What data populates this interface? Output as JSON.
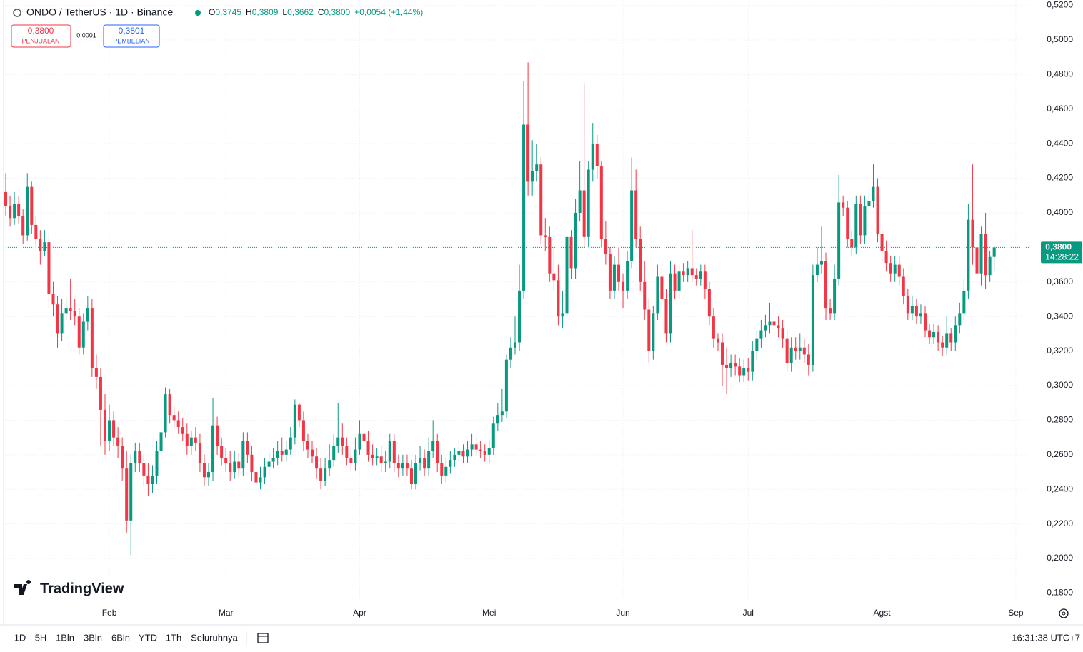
{
  "chart_data": {
    "type": "candlestick",
    "title": "ONDO / TetherUS · 1D · Binance",
    "ohlc": [
      [
        "O",
        "0,3745"
      ],
      [
        "H",
        "0,3809"
      ],
      [
        "L",
        "0,3662"
      ],
      [
        "C",
        "0,3800"
      ]
    ],
    "change": "+0,0054 (+1,44%)",
    "sell": {
      "price": "0,3800",
      "label": "PENJUALAN"
    },
    "spread": "0,0001",
    "buy": {
      "price": "0,3801",
      "label": "PEMBELIAN"
    },
    "last_price_label": "0,3800",
    "countdown": "14:28:22",
    "watermark": "TradingView",
    "up_color": "#089981",
    "down_color": "#f23645",
    "grid": true,
    "open": [
      0.412,
      0.404,
      0.397,
      0.405,
      0.398,
      0.387,
      0.415,
      0.393,
      0.385,
      0.378,
      0.383,
      0.353,
      0.347,
      0.33,
      0.342,
      0.345,
      0.343,
      0.34,
      0.322,
      0.337,
      0.345,
      0.31,
      0.305,
      0.286,
      0.268,
      0.28,
      0.27,
      0.265,
      0.252,
      0.222,
      0.255,
      0.262,
      0.255,
      0.248,
      0.243,
      0.248,
      0.262,
      0.273,
      0.295,
      0.283,
      0.28,
      0.276,
      0.272,
      0.265,
      0.27,
      0.267,
      0.255,
      0.247,
      0.25,
      0.277,
      0.265,
      0.258,
      0.255,
      0.25,
      0.256,
      0.252,
      0.268,
      0.26,
      0.25,
      0.244,
      0.247,
      0.253,
      0.256,
      0.258,
      0.262,
      0.26,
      0.263,
      0.27,
      0.289,
      0.28,
      0.268,
      0.263,
      0.259,
      0.252,
      0.245,
      0.252,
      0.257,
      0.265,
      0.27,
      0.265,
      0.258,
      0.255,
      0.263,
      0.272,
      0.268,
      0.26,
      0.258,
      0.259,
      0.255,
      0.256,
      0.268,
      0.255,
      0.252,
      0.255,
      0.252,
      0.243,
      0.255,
      0.258,
      0.252,
      0.262,
      0.268,
      0.255,
      0.248,
      0.253,
      0.257,
      0.26,
      0.262,
      0.259,
      0.263,
      0.266,
      0.263,
      0.262,
      0.26,
      0.264,
      0.278,
      0.283,
      0.285,
      0.315,
      0.322,
      0.325,
      0.355,
      0.451,
      0.418,
      0.424,
      0.428,
      0.387,
      0.386,
      0.365,
      0.361,
      0.34,
      0.342,
      0.386,
      0.368,
      0.4,
      0.413,
      0.386,
      0.425,
      0.44,
      0.427,
      0.385,
      0.376,
      0.355,
      0.37,
      0.36,
      0.355,
      0.372,
      0.413,
      0.385,
      0.36,
      0.344,
      0.32,
      0.342,
      0.363,
      0.35,
      0.33,
      0.365,
      0.355,
      0.366,
      0.364,
      0.368,
      0.364,
      0.362,
      0.366,
      0.356,
      0.34,
      0.327,
      0.325,
      0.312,
      0.31,
      0.313,
      0.311,
      0.306,
      0.31,
      0.308,
      0.32,
      0.327,
      0.332,
      0.335,
      0.337,
      0.335,
      0.333,
      0.327,
      0.313,
      0.322,
      0.32,
      0.322,
      0.318,
      0.312,
      0.364,
      0.37,
      0.372,
      0.345,
      0.342,
      0.362,
      0.406,
      0.403,
      0.385,
      0.38,
      0.405,
      0.387,
      0.404,
      0.407,
      0.415,
      0.388,
      0.378,
      0.371,
      0.365,
      0.37,
      0.363,
      0.352,
      0.342,
      0.346,
      0.34,
      0.342,
      0.332,
      0.328,
      0.331,
      0.325,
      0.322,
      0.33,
      0.325,
      0.335,
      0.342,
      0.355,
      0.396,
      0.38,
      0.365,
      0.388,
      0.364,
      0.3745
    ],
    "high": [
      0.423,
      0.41,
      0.412,
      0.41,
      0.402,
      0.423,
      0.418,
      0.398,
      0.39,
      0.39,
      0.388,
      0.36,
      0.352,
      0.35,
      0.351,
      0.362,
      0.35,
      0.345,
      0.342,
      0.352,
      0.35,
      0.318,
      0.31,
      0.295,
      0.289,
      0.285,
      0.276,
      0.27,
      0.262,
      0.26,
      0.267,
      0.267,
      0.26,
      0.255,
      0.254,
      0.268,
      0.298,
      0.299,
      0.298,
      0.288,
      0.285,
      0.281,
      0.278,
      0.274,
      0.276,
      0.272,
      0.26,
      0.255,
      0.293,
      0.282,
      0.27,
      0.264,
      0.262,
      0.262,
      0.261,
      0.273,
      0.273,
      0.265,
      0.256,
      0.253,
      0.258,
      0.262,
      0.264,
      0.268,
      0.27,
      0.268,
      0.276,
      0.292,
      0.29,
      0.285,
      0.272,
      0.268,
      0.264,
      0.258,
      0.258,
      0.266,
      0.272,
      0.29,
      0.278,
      0.27,
      0.264,
      0.27,
      0.28,
      0.278,
      0.274,
      0.266,
      0.264,
      0.265,
      0.262,
      0.272,
      0.272,
      0.26,
      0.26,
      0.26,
      0.257,
      0.26,
      0.265,
      0.263,
      0.27,
      0.28,
      0.272,
      0.26,
      0.258,
      0.262,
      0.264,
      0.268,
      0.266,
      0.268,
      0.272,
      0.27,
      0.268,
      0.266,
      0.268,
      0.282,
      0.29,
      0.298,
      0.318,
      0.328,
      0.34,
      0.37,
      0.476,
      0.487,
      0.442,
      0.44,
      0.432,
      0.397,
      0.392,
      0.38,
      0.37,
      0.355,
      0.39,
      0.39,
      0.408,
      0.43,
      0.475,
      0.43,
      0.452,
      0.445,
      0.43,
      0.395,
      0.38,
      0.375,
      0.38,
      0.365,
      0.378,
      0.432,
      0.425,
      0.392,
      0.372,
      0.35,
      0.346,
      0.37,
      0.368,
      0.356,
      0.372,
      0.37,
      0.37,
      0.371,
      0.372,
      0.39,
      0.368,
      0.37,
      0.37,
      0.36,
      0.345,
      0.33,
      0.33,
      0.322,
      0.318,
      0.318,
      0.316,
      0.315,
      0.316,
      0.326,
      0.332,
      0.338,
      0.341,
      0.348,
      0.342,
      0.34,
      0.338,
      0.332,
      0.328,
      0.328,
      0.33,
      0.327,
      0.324,
      0.37,
      0.38,
      0.392,
      0.377,
      0.35,
      0.37,
      0.422,
      0.41,
      0.407,
      0.39,
      0.41,
      0.41,
      0.41,
      0.412,
      0.428,
      0.42,
      0.392,
      0.384,
      0.375,
      0.375,
      0.375,
      0.368,
      0.356,
      0.352,
      0.35,
      0.347,
      0.346,
      0.336,
      0.336,
      0.335,
      0.329,
      0.34,
      0.333,
      0.34,
      0.348,
      0.362,
      0.405,
      0.428,
      0.395,
      0.392,
      0.4,
      0.378,
      0.3809
    ],
    "low": [
      0.398,
      0.392,
      0.393,
      0.394,
      0.382,
      0.384,
      0.388,
      0.38,
      0.37,
      0.375,
      0.345,
      0.34,
      0.322,
      0.326,
      0.338,
      0.338,
      0.335,
      0.318,
      0.318,
      0.332,
      0.305,
      0.298,
      0.265,
      0.26,
      0.262,
      0.265,
      0.258,
      0.245,
      0.215,
      0.202,
      0.25,
      0.25,
      0.242,
      0.236,
      0.238,
      0.243,
      0.258,
      0.27,
      0.278,
      0.275,
      0.272,
      0.268,
      0.26,
      0.26,
      0.262,
      0.25,
      0.242,
      0.242,
      0.245,
      0.26,
      0.254,
      0.25,
      0.245,
      0.246,
      0.247,
      0.248,
      0.255,
      0.245,
      0.24,
      0.24,
      0.243,
      0.248,
      0.252,
      0.254,
      0.256,
      0.256,
      0.26,
      0.266,
      0.276,
      0.262,
      0.258,
      0.255,
      0.246,
      0.24,
      0.242,
      0.248,
      0.253,
      0.261,
      0.26,
      0.254,
      0.25,
      0.251,
      0.26,
      0.264,
      0.256,
      0.254,
      0.254,
      0.25,
      0.25,
      0.252,
      0.25,
      0.247,
      0.248,
      0.248,
      0.24,
      0.24,
      0.251,
      0.248,
      0.248,
      0.258,
      0.25,
      0.243,
      0.244,
      0.249,
      0.253,
      0.256,
      0.255,
      0.255,
      0.259,
      0.259,
      0.258,
      0.256,
      0.255,
      0.26,
      0.274,
      0.279,
      0.281,
      0.31,
      0.318,
      0.32,
      0.35,
      0.41,
      0.41,
      0.418,
      0.382,
      0.378,
      0.36,
      0.355,
      0.335,
      0.333,
      0.338,
      0.362,
      0.362,
      0.395,
      0.38,
      0.38,
      0.418,
      0.42,
      0.38,
      0.37,
      0.35,
      0.35,
      0.355,
      0.345,
      0.35,
      0.368,
      0.38,
      0.355,
      0.338,
      0.313,
      0.315,
      0.338,
      0.345,
      0.325,
      0.325,
      0.35,
      0.35,
      0.36,
      0.36,
      0.36,
      0.358,
      0.358,
      0.35,
      0.335,
      0.322,
      0.32,
      0.3,
      0.295,
      0.305,
      0.306,
      0.302,
      0.302,
      0.303,
      0.303,
      0.315,
      0.322,
      0.328,
      0.33,
      0.33,
      0.328,
      0.322,
      0.308,
      0.308,
      0.315,
      0.315,
      0.313,
      0.306,
      0.308,
      0.36,
      0.365,
      0.338,
      0.338,
      0.338,
      0.358,
      0.398,
      0.38,
      0.375,
      0.376,
      0.382,
      0.382,
      0.4,
      0.403,
      0.383,
      0.372,
      0.366,
      0.36,
      0.36,
      0.358,
      0.347,
      0.338,
      0.338,
      0.336,
      0.336,
      0.328,
      0.324,
      0.324,
      0.32,
      0.317,
      0.318,
      0.32,
      0.32,
      0.33,
      0.338,
      0.35,
      0.37,
      0.36,
      0.358,
      0.356,
      0.36,
      0.3662
    ],
    "close": [
      0.404,
      0.397,
      0.405,
      0.398,
      0.387,
      0.415,
      0.393,
      0.385,
      0.378,
      0.383,
      0.353,
      0.347,
      0.33,
      0.342,
      0.345,
      0.343,
      0.34,
      0.322,
      0.337,
      0.345,
      0.31,
      0.305,
      0.286,
      0.268,
      0.28,
      0.27,
      0.265,
      0.252,
      0.222,
      0.255,
      0.262,
      0.255,
      0.248,
      0.243,
      0.248,
      0.262,
      0.273,
      0.295,
      0.283,
      0.28,
      0.276,
      0.272,
      0.265,
      0.27,
      0.267,
      0.255,
      0.247,
      0.25,
      0.277,
      0.265,
      0.258,
      0.255,
      0.25,
      0.256,
      0.252,
      0.268,
      0.26,
      0.25,
      0.244,
      0.247,
      0.253,
      0.256,
      0.258,
      0.262,
      0.26,
      0.263,
      0.27,
      0.289,
      0.28,
      0.268,
      0.263,
      0.259,
      0.252,
      0.245,
      0.252,
      0.257,
      0.265,
      0.27,
      0.265,
      0.258,
      0.255,
      0.263,
      0.272,
      0.268,
      0.26,
      0.258,
      0.259,
      0.255,
      0.256,
      0.268,
      0.255,
      0.252,
      0.255,
      0.252,
      0.243,
      0.255,
      0.258,
      0.252,
      0.262,
      0.268,
      0.255,
      0.248,
      0.253,
      0.257,
      0.26,
      0.262,
      0.259,
      0.263,
      0.266,
      0.263,
      0.262,
      0.26,
      0.264,
      0.278,
      0.283,
      0.285,
      0.315,
      0.322,
      0.325,
      0.355,
      0.451,
      0.418,
      0.424,
      0.428,
      0.387,
      0.386,
      0.365,
      0.361,
      0.34,
      0.342,
      0.386,
      0.368,
      0.4,
      0.413,
      0.386,
      0.425,
      0.44,
      0.427,
      0.385,
      0.376,
      0.355,
      0.37,
      0.36,
      0.355,
      0.372,
      0.413,
      0.385,
      0.36,
      0.344,
      0.32,
      0.342,
      0.363,
      0.35,
      0.33,
      0.365,
      0.355,
      0.366,
      0.364,
      0.368,
      0.364,
      0.362,
      0.366,
      0.356,
      0.34,
      0.327,
      0.325,
      0.312,
      0.31,
      0.313,
      0.311,
      0.306,
      0.31,
      0.308,
      0.32,
      0.327,
      0.332,
      0.335,
      0.337,
      0.335,
      0.333,
      0.327,
      0.313,
      0.322,
      0.32,
      0.322,
      0.318,
      0.312,
      0.364,
      0.37,
      0.372,
      0.345,
      0.342,
      0.362,
      0.406,
      0.403,
      0.385,
      0.38,
      0.405,
      0.387,
      0.404,
      0.407,
      0.415,
      0.388,
      0.378,
      0.371,
      0.365,
      0.37,
      0.363,
      0.352,
      0.342,
      0.346,
      0.34,
      0.342,
      0.332,
      0.328,
      0.331,
      0.325,
      0.322,
      0.33,
      0.325,
      0.335,
      0.342,
      0.355,
      0.396,
      0.38,
      0.365,
      0.388,
      0.364,
      0.3745,
      0.38
    ],
    "xlim": [
      -0.5,
      237
    ],
    "xticks": [
      {
        "value": 24,
        "label": "Feb"
      },
      {
        "value": 51,
        "label": "Mar"
      },
      {
        "value": 82,
        "label": "Apr"
      },
      {
        "value": 112,
        "label": "Mei"
      },
      {
        "value": 143,
        "label": "Jun"
      },
      {
        "value": 172,
        "label": "Jul"
      },
      {
        "value": 203,
        "label": "Agst"
      },
      {
        "value": 234,
        "label": "Sep"
      }
    ],
    "ylim": [
      0.174,
      0.5231
    ],
    "yticks": [
      {
        "value": 0.18,
        "label": "0,1800"
      },
      {
        "value": 0.2,
        "label": "0,2000"
      },
      {
        "value": 0.22,
        "label": "0,2200"
      },
      {
        "value": 0.24,
        "label": "0,2400"
      },
      {
        "value": 0.26,
        "label": "0,2600"
      },
      {
        "value": 0.28,
        "label": "0,2800"
      },
      {
        "value": 0.3,
        "label": "0,3000"
      },
      {
        "value": 0.32,
        "label": "0,3200"
      },
      {
        "value": 0.34,
        "label": "0,3400"
      },
      {
        "value": 0.36,
        "label": "0,3600"
      },
      {
        "value": 0.38,
        "label": "0,3800"
      },
      {
        "value": 0.4,
        "label": "0,4000"
      },
      {
        "value": 0.42,
        "label": "0,4200"
      },
      {
        "value": 0.44,
        "label": "0,4400"
      },
      {
        "value": 0.46,
        "label": "0,4600"
      },
      {
        "value": 0.48,
        "label": "0,4800"
      },
      {
        "value": 0.5,
        "label": "0,5000"
      },
      {
        "value": 0.52,
        "label": "0,5200"
      }
    ]
  },
  "toolbar": {
    "ranges": [
      "1D",
      "5H",
      "1Bln",
      "3Bln",
      "6Bln",
      "YTD",
      "1Th",
      "Seluruhnya"
    ],
    "clock": "16:31:38 UTC+7"
  }
}
